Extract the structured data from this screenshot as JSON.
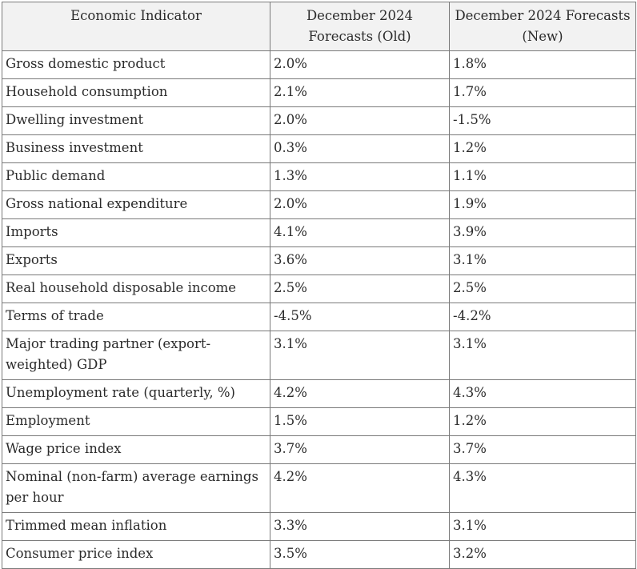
{
  "table": {
    "headers": [
      "Economic Indicator",
      "December 2024 Forecasts (Old)",
      "December 2024 Forecasts (New)"
    ],
    "rows": [
      {
        "indicator": "Gross domestic product",
        "old": "2.0%",
        "new": "1.8%"
      },
      {
        "indicator": "Household consumption",
        "old": "2.1%",
        "new": "1.7%"
      },
      {
        "indicator": "Dwelling investment",
        "old": "2.0%",
        "new": "-1.5%"
      },
      {
        "indicator": "Business investment",
        "old": "0.3%",
        "new": "1.2%"
      },
      {
        "indicator": "Public demand",
        "old": "1.3%",
        "new": "1.1%"
      },
      {
        "indicator": "Gross national expenditure",
        "old": "2.0%",
        "new": "1.9%"
      },
      {
        "indicator": "Imports",
        "old": "4.1%",
        "new": "3.9%"
      },
      {
        "indicator": "Exports",
        "old": "3.6%",
        "new": "3.1%"
      },
      {
        "indicator": "Real household disposable income",
        "old": "2.5%",
        "new": "2.5%"
      },
      {
        "indicator": "Terms of trade",
        "old": "-4.5%",
        "new": "-4.2%"
      },
      {
        "indicator": "Major trading partner (export-weighted) GDP",
        "old": "3.1%",
        "new": "3.1%"
      },
      {
        "indicator": "Unemployment rate (quarterly, %)",
        "old": "4.2%",
        "new": "4.3%"
      },
      {
        "indicator": "Employment",
        "old": "1.5%",
        "new": "1.2%"
      },
      {
        "indicator": "Wage price index",
        "old": "3.7%",
        "new": "3.7%"
      },
      {
        "indicator": "Nominal (non-farm) average earnings per hour",
        "old": "4.2%",
        "new": "4.3%"
      },
      {
        "indicator": "Trimmed mean inflation",
        "old": "3.3%",
        "new": "3.1%"
      },
      {
        "indicator": "Consumer price index",
        "old": "3.5%",
        "new": "3.2%"
      }
    ]
  }
}
